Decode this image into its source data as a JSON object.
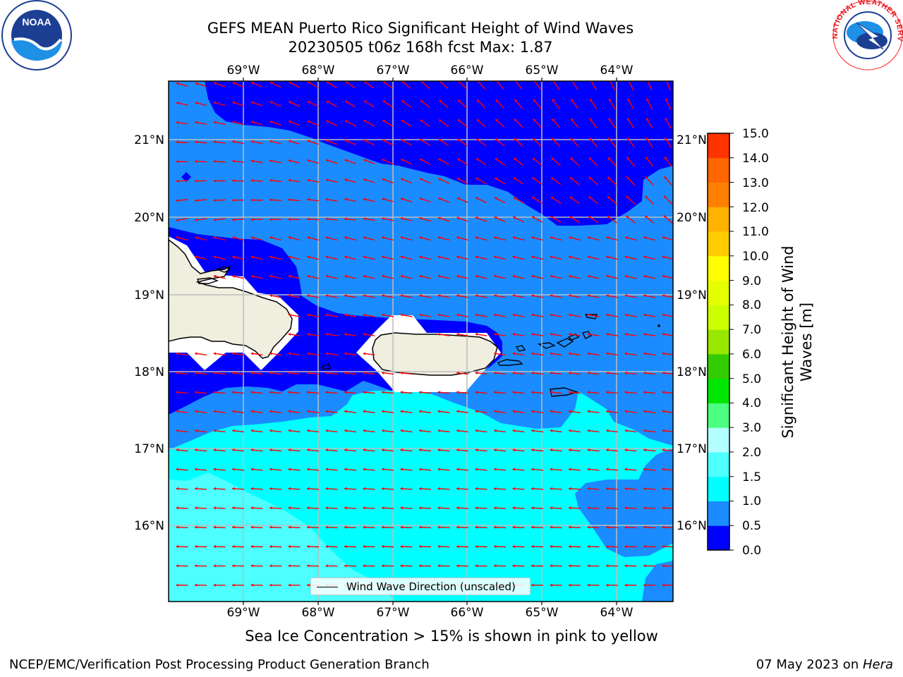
{
  "title": {
    "line1": "GEFS MEAN Puerto Rico Significant Height of Wind Waves",
    "line2": "20230505 t06z 168h fcst   Max: 1.87"
  },
  "map": {
    "lon_labels": [
      "69°W",
      "68°W",
      "67°W",
      "66°W",
      "65°W",
      "64°W"
    ],
    "lat_labels": [
      "21°N",
      "20°N",
      "19°N",
      "18°N",
      "17°N",
      "16°N"
    ],
    "colors": {
      "land": "#efeedf",
      "band_0_0_5": "#0000ff",
      "band_0_5_1_0": "#1a8cff",
      "band_1_0_1_5": "#00ffff",
      "band_1_5_2_0": "#4dffff",
      "arrow": "#ff0000"
    },
    "legend_label": "Wind Wave Direction (unscaled)"
  },
  "colorbar": {
    "title": "Significant Height of Wind Waves [m]",
    "ticks": [
      "15.0",
      "14.0",
      "13.0",
      "12.0",
      "11.0",
      "10.0",
      "9.0",
      "8.0",
      "7.0",
      "6.0",
      "5.0",
      "4.0",
      "3.0",
      "2.0",
      "1.5",
      "1.0",
      "0.5",
      "0.0"
    ],
    "colors": [
      "#0000ff",
      "#1a8cff",
      "#00ffff",
      "#4dffff",
      "#b3ffff",
      "#4dff80",
      "#00e600",
      "#33cc00",
      "#99e600",
      "#ccff00",
      "#e6ff00",
      "#ffff00",
      "#ffcc00",
      "#ffb300",
      "#ff8000",
      "#ff6600",
      "#ff3300"
    ]
  },
  "caption": "Sea Ice Concentration > 15% is shown in pink to yellow",
  "footer": {
    "left": "NCEP/EMC/Verification Post Processing Product Generation Branch",
    "right_prefix": "07 May 2023 on ",
    "right_host": "Hera"
  },
  "logos": {
    "noaa_text": "NOAA",
    "nws_text": "NATIONAL WEATHER SERVICE"
  }
}
